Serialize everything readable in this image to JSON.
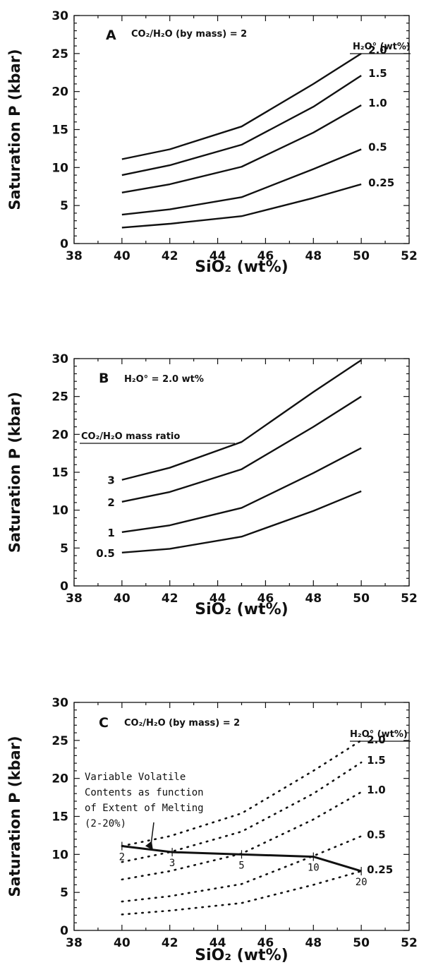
{
  "chart_data": [
    {
      "type": "line",
      "panel_letter": "A",
      "annotation": "CO₂/H₂O (by mass) = 2",
      "legend_title": "H₂O° (wt%)",
      "xlabel": "SiO₂ (wt%)",
      "ylabel": "Saturation P (kbar)",
      "xlim": [
        38,
        52
      ],
      "ylim": [
        0,
        30
      ],
      "x_ticks": [
        "38",
        "40",
        "42",
        "44",
        "46",
        "48",
        "50",
        "52"
      ],
      "y_ticks": [
        "0",
        "5",
        "10",
        "15",
        "20",
        "25",
        "30"
      ],
      "grid": false,
      "x": [
        40,
        42,
        45,
        48,
        50
      ],
      "series": [
        {
          "name": "2.0",
          "values": [
            11.1,
            12.4,
            15.4,
            21.0,
            25.0
          ]
        },
        {
          "name": "1.5",
          "values": [
            9.0,
            10.3,
            13.0,
            18.0,
            22.1
          ]
        },
        {
          "name": "1.0",
          "values": [
            6.7,
            7.8,
            10.1,
            14.6,
            18.2
          ]
        },
        {
          "name": "0.5",
          "values": [
            3.8,
            4.5,
            6.1,
            9.8,
            12.4
          ]
        },
        {
          "name": "0.25",
          "values": [
            2.1,
            2.6,
            3.6,
            6.0,
            7.8
          ]
        }
      ]
    },
    {
      "type": "line",
      "panel_letter": "B",
      "annotation": "H₂O° = 2.0 wt%",
      "legend_title": "CO₂/H₂O mass ratio",
      "xlabel": "SiO₂ (wt%)",
      "ylabel": "Saturation P (kbar)",
      "xlim": [
        38,
        52
      ],
      "ylim": [
        0,
        30
      ],
      "x_ticks": [
        "38",
        "40",
        "42",
        "44",
        "46",
        "48",
        "50",
        "52"
      ],
      "y_ticks": [
        "0",
        "5",
        "10",
        "15",
        "20",
        "25",
        "30"
      ],
      "grid": false,
      "x": [
        40,
        42,
        45,
        48,
        50
      ],
      "series": [
        {
          "name": "3",
          "values": [
            14.0,
            15.6,
            19.0,
            25.6,
            29.8
          ]
        },
        {
          "name": "2",
          "values": [
            11.1,
            12.4,
            15.4,
            21.0,
            25.0
          ]
        },
        {
          "name": "1",
          "values": [
            7.1,
            8.0,
            10.3,
            14.9,
            18.2
          ]
        },
        {
          "name": "0.5",
          "values": [
            4.4,
            4.9,
            6.5,
            9.9,
            12.5
          ]
        }
      ]
    },
    {
      "type": "line",
      "panel_letter": "C",
      "annotation": "CO₂/H₂O (by mass) = 2",
      "legend_title": "H₂O° (wt%)",
      "callout": [
        "Variable  Volatile",
        "Contents as function",
        "of Extent of Melting",
        "(2-20%)"
      ],
      "xlabel": "SiO₂ (wt%)",
      "ylabel": "Saturation P (kbar)",
      "xlim": [
        38,
        52
      ],
      "ylim": [
        0,
        30
      ],
      "x_ticks": [
        "38",
        "40",
        "42",
        "44",
        "46",
        "48",
        "50",
        "52"
      ],
      "y_ticks": [
        "0",
        "5",
        "10",
        "15",
        "20",
        "25",
        "30"
      ],
      "grid": false,
      "x": [
        40,
        42,
        45,
        48,
        50
      ],
      "series": [
        {
          "name": "2.0",
          "style": "dotted",
          "values": [
            11.1,
            12.4,
            15.4,
            21.0,
            25.0
          ]
        },
        {
          "name": "1.5",
          "style": "dotted",
          "values": [
            9.0,
            10.3,
            13.0,
            18.0,
            22.1
          ]
        },
        {
          "name": "1.0",
          "style": "dotted",
          "values": [
            6.7,
            7.8,
            10.1,
            14.6,
            18.2
          ]
        },
        {
          "name": "0.5",
          "style": "dotted",
          "values": [
            3.8,
            4.5,
            6.1,
            9.8,
            12.4
          ]
        },
        {
          "name": "0.25",
          "style": "dotted",
          "values": [
            2.1,
            2.6,
            3.6,
            6.0,
            7.8
          ]
        }
      ],
      "melting_path": {
        "style": "solid",
        "points": [
          {
            "x": 40.0,
            "y": 11.1,
            "label": "2"
          },
          {
            "x": 42.1,
            "y": 10.3,
            "label": "3"
          },
          {
            "x": 45.0,
            "y": 10.0,
            "label": "5"
          },
          {
            "x": 48.0,
            "y": 9.7,
            "label": "10"
          },
          {
            "x": 50.0,
            "y": 7.8,
            "label": "20"
          }
        ]
      }
    }
  ]
}
